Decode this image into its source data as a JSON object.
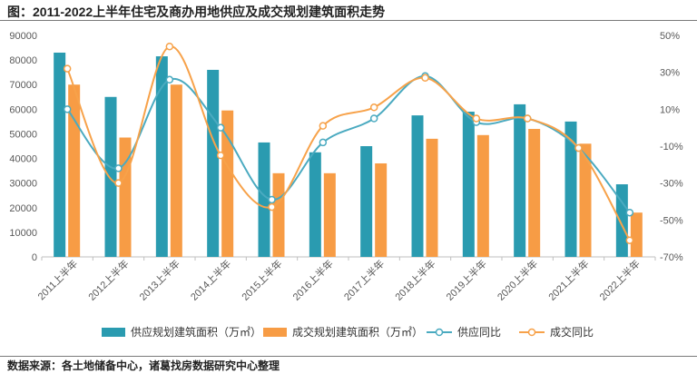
{
  "title": "图：2011-2022上半年住宅及商办用地供应及成交规划建筑面积走势",
  "source": "数据来源：各土地储备中心，诸葛找房数据研究中心整理",
  "colors": {
    "supply_bar": "#2a9bb0",
    "deal_bar": "#f79c45",
    "supply_line": "#4aaac0",
    "deal_line": "#f7a24a"
  },
  "chart_data": {
    "type": "bar",
    "categories": [
      "2011上半年",
      "2012上半年",
      "2013上半年",
      "2014上半年",
      "2015上半年",
      "2016上半年",
      "2017上半年",
      "2018上半年",
      "2019上半年",
      "2020上半年",
      "2021上半年",
      "2022上半年"
    ],
    "series": [
      {
        "name": "供应规划建筑面积（万㎡）",
        "type": "bar",
        "axis": "left",
        "values": [
          83000,
          65000,
          81500,
          76000,
          46500,
          42500,
          45000,
          57500,
          59000,
          62000,
          55000,
          29500
        ]
      },
      {
        "name": "成交规划建筑面积（万㎡）",
        "type": "bar",
        "axis": "left",
        "values": [
          70000,
          48500,
          70000,
          59500,
          34000,
          34000,
          38000,
          48000,
          49500,
          52000,
          46000,
          18000
        ]
      },
      {
        "name": "供应同比",
        "type": "line",
        "axis": "right",
        "values": [
          10,
          -22,
          26,
          0,
          -39,
          -8,
          5,
          28,
          3,
          5,
          -11,
          -46
        ]
      },
      {
        "name": "成交同比",
        "type": "line",
        "axis": "right",
        "values": [
          32,
          -30,
          44,
          -15,
          -43,
          1,
          11,
          27,
          5,
          5,
          -11,
          -61
        ]
      }
    ],
    "y_left": {
      "min": 0,
      "max": 90000,
      "step": 10000,
      "ticks": [
        "0",
        "10000",
        "20000",
        "30000",
        "40000",
        "50000",
        "60000",
        "70000",
        "80000",
        "90000"
      ]
    },
    "y_right": {
      "min": -70,
      "max": 50,
      "step": 20,
      "ticks": [
        "-70%",
        "-50%",
        "-30%",
        "-10%",
        "10%",
        "30%",
        "50%"
      ]
    },
    "legend_position": "bottom",
    "grid": false
  }
}
